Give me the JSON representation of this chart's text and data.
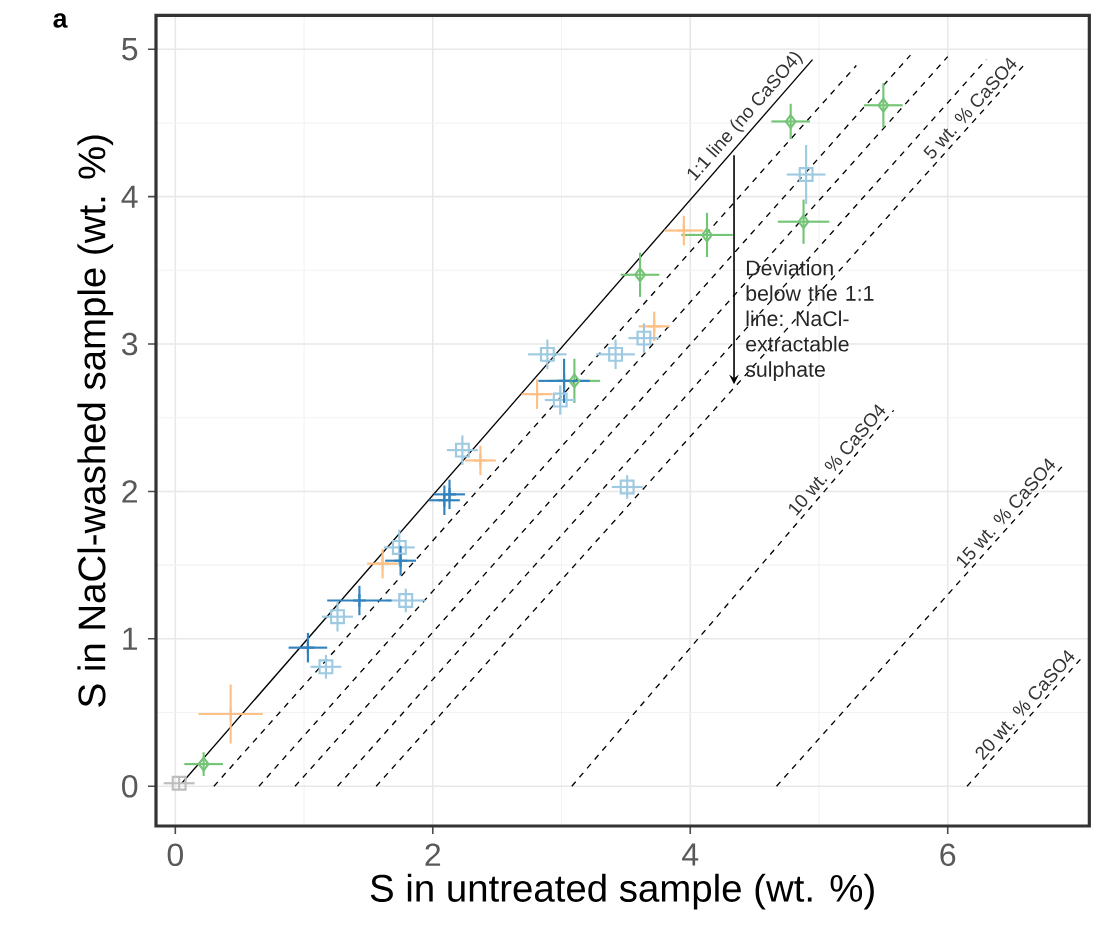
{
  "chart_data": {
    "type": "scatter",
    "xlabel": "S in untreated sample (wt. %)",
    "ylabel": "S in NaCl-washed sample (wt. %)",
    "xlim": [
      -0.15,
      7.1
    ],
    "ylim": [
      -0.27,
      5.23
    ],
    "xticks": [
      0,
      2,
      4,
      6
    ],
    "yticks": [
      0,
      1,
      2,
      3,
      4,
      5
    ],
    "grid": true,
    "annotations": [
      "a",
      {
        "text": "Deviation below the 1:1 line: NaCl-extractable sulphate",
        "x": 4.34,
        "y": 4.28
      }
    ],
    "series": [
      {
        "type": "line",
        "name": "1:1 line (no CaSO4)",
        "color": "#000000",
        "line_style": "solid",
        "x": [
          0.05,
          4.95
        ],
        "values": [
          0.02,
          4.93
        ]
      },
      {
        "type": "line",
        "color": "#000000",
        "line_style": "dashed",
        "x": [
          0.3,
          5.29
        ],
        "values": [
          0,
          4.89
        ]
      },
      {
        "type": "line",
        "color": "#000000",
        "line_style": "dashed",
        "x": [
          0.65,
          5.71
        ],
        "values": [
          0,
          4.96
        ]
      },
      {
        "type": "line",
        "color": "#000000",
        "line_style": "dashed",
        "x": [
          0.93,
          6.0
        ],
        "values": [
          0,
          4.95
        ]
      },
      {
        "type": "line",
        "color": "#000000",
        "line_style": "dashed",
        "x": [
          1.26,
          6.3
        ],
        "values": [
          0,
          4.93
        ]
      },
      {
        "type": "line",
        "name": "5 wt. % CaSO4",
        "color": "#000000",
        "line_style": "dashed",
        "x": [
          1.56,
          6.6
        ],
        "values": [
          0,
          4.9
        ]
      },
      {
        "type": "line",
        "name": "10 wt. % CaSO4",
        "color": "#000000",
        "line_style": "dashed",
        "x": [
          3.08,
          5.58
        ],
        "values": [
          0,
          2.55
        ]
      },
      {
        "type": "line",
        "name": "15 wt. % CaSO4",
        "color": "#000000",
        "line_style": "dashed",
        "x": [
          4.67,
          6.9
        ],
        "values": [
          0,
          2.18
        ]
      },
      {
        "type": "line",
        "name": "20 wt. % CaSO4",
        "color": "#000000",
        "line_style": "dashed",
        "x": [
          6.15,
          7.05
        ],
        "values": [
          0,
          0.88
        ]
      },
      {
        "marker": "square",
        "color": "#bdbdbd",
        "x": [
          0.03
        ],
        "values": [
          0.02
        ],
        "errors": [
          0.04
        ],
        "xerrors": [
          0.12
        ]
      },
      {
        "marker": "diamond",
        "color": "#74c476",
        "x": [
          0.22,
          3.1,
          3.61,
          4.13,
          4.78,
          4.88,
          5.5
        ],
        "values": [
          0.15,
          2.75,
          3.47,
          3.74,
          4.51,
          3.83,
          4.62
        ],
        "errors": [
          0.08,
          0.15,
          0.15,
          0.15,
          0.12,
          0.15,
          0.15
        ],
        "xerrors": [
          0.15,
          0.2,
          0.15,
          0.2,
          0.15,
          0.2,
          0.15
        ]
      },
      {
        "marker": "cross",
        "color": "#fdc086",
        "x": [
          0.43,
          1.61,
          2.37,
          2.81,
          3.72,
          3.95
        ],
        "values": [
          0.49,
          1.51,
          2.21,
          2.66,
          3.12,
          3.77
        ],
        "errors": [
          0.2,
          0.1,
          0.1,
          0.1,
          0.1,
          0.1
        ],
        "xerrors": [
          0.25,
          0.12,
          0.12,
          0.12,
          0.12,
          0.15
        ]
      },
      {
        "marker": "square",
        "color": "#9ecae1",
        "x": [
          1.17,
          1.26,
          1.74,
          1.79,
          2.23,
          2.89,
          2.99,
          3.42,
          3.64,
          3.51,
          4.9
        ],
        "values": [
          0.81,
          1.15,
          1.62,
          1.26,
          2.28,
          2.93,
          2.62,
          2.93,
          3.04,
          2.03,
          4.15
        ],
        "errors": [
          0.08,
          0.1,
          0.12,
          0.08,
          0.1,
          0.1,
          0.1,
          0.1,
          0.1,
          0.08,
          0.2
        ],
        "xerrors": [
          0.12,
          0.12,
          0.12,
          0.15,
          0.12,
          0.15,
          0.12,
          0.15,
          0.12,
          0.12,
          0.15
        ]
      },
      {
        "marker": "cross",
        "color": "#3182bd",
        "x": [
          1.03,
          1.43,
          1.75,
          2.09,
          2.13,
          3.02
        ],
        "values": [
          0.94,
          1.26,
          1.53,
          1.94,
          1.98,
          2.75
        ],
        "errors": [
          0.1,
          0.1,
          0.1,
          0.1,
          0.1,
          0.15
        ],
        "xerrors": [
          0.15,
          0.25,
          0.12,
          0.12,
          0.12,
          0.2
        ]
      }
    ]
  }
}
